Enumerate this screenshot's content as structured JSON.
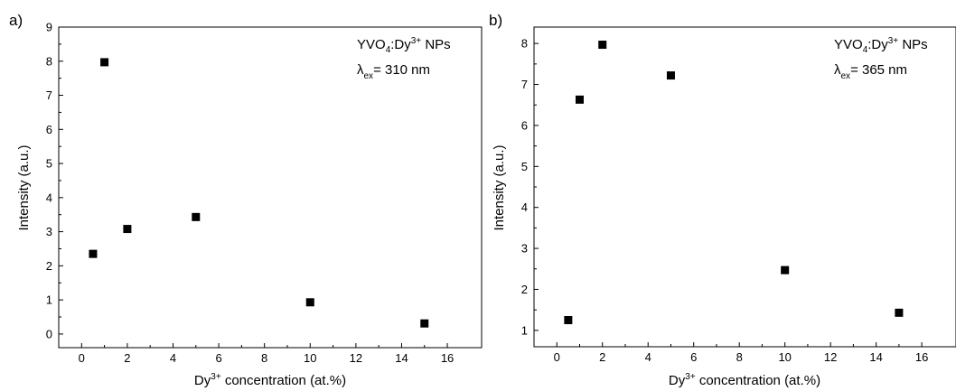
{
  "chart_data": [
    {
      "type": "scatter",
      "panel_label": "a)",
      "annotation": {
        "compound_main": "YVO",
        "compound_sub": "4",
        "compound_dopant": ":Dy",
        "compound_sup": "3+",
        "compound_tail": " NPs",
        "lambda_symbol": "λ",
        "lambda_sub": "ex",
        "lambda_value": "= 310 nm"
      },
      "xlabel": {
        "main": "Dy",
        "sup": "3+",
        "rest": " concentration (at.%)"
      },
      "ylabel": "Intensity (a.u.)",
      "xlim": [
        -1,
        17.5
      ],
      "ylim": [
        -0.4,
        9
      ],
      "x_ticks": [
        0,
        2,
        4,
        6,
        8,
        10,
        12,
        14,
        16
      ],
      "y_ticks": [
        0,
        1,
        2,
        3,
        4,
        5,
        6,
        7,
        8,
        9
      ],
      "series": [
        {
          "x": [
            0.5,
            1,
            2,
            5,
            10,
            15
          ],
          "y": [
            2.35,
            7.97,
            3.08,
            3.43,
            0.93,
            0.31
          ]
        }
      ],
      "marker_color": "#000000"
    },
    {
      "type": "scatter",
      "panel_label": "b)",
      "annotation": {
        "compound_main": "YVO",
        "compound_sub": "4",
        "compound_dopant": ":Dy",
        "compound_sup": "3+",
        "compound_tail": " NPs",
        "lambda_symbol": "λ",
        "lambda_sub": "ex",
        "lambda_value": "= 365 nm"
      },
      "xlabel": {
        "main": "Dy",
        "sup": "3+",
        "rest": " concentration (at.%)"
      },
      "ylabel": "Intensity (a.u.)",
      "xlim": [
        -1,
        17.5
      ],
      "ylim": [
        0.6,
        8.4
      ],
      "x_ticks": [
        0,
        2,
        4,
        6,
        8,
        10,
        12,
        14,
        16
      ],
      "y_ticks": [
        1,
        2,
        3,
        4,
        5,
        6,
        7,
        8
      ],
      "series": [
        {
          "x": [
            0.5,
            1,
            2,
            5,
            10,
            15
          ],
          "y": [
            1.25,
            6.63,
            7.97,
            7.22,
            2.47,
            1.43
          ]
        }
      ],
      "marker_color": "#000000"
    }
  ]
}
